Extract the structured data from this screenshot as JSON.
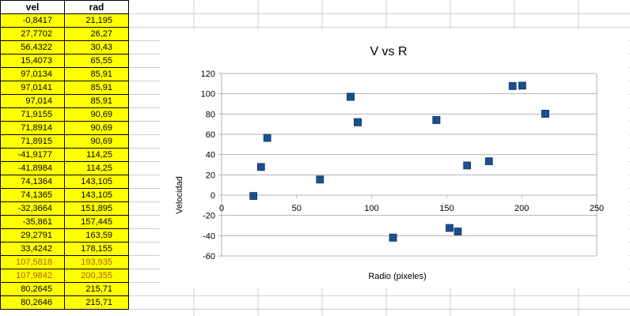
{
  "table": {
    "headers": {
      "vel": "vel",
      "rad": "rad"
    },
    "rows": [
      {
        "vel": "-0,8417",
        "rad": "21,195"
      },
      {
        "vel": "27,7702",
        "rad": "26,27"
      },
      {
        "vel": "56,4322",
        "rad": "30,43"
      },
      {
        "vel": "15,4073",
        "rad": "65,55"
      },
      {
        "vel": "97,0134",
        "rad": "85,91"
      },
      {
        "vel": "97,0141",
        "rad": "85,91"
      },
      {
        "vel": "97,014",
        "rad": "85,91"
      },
      {
        "vel": "71,9155",
        "rad": "90,69"
      },
      {
        "vel": "71,8914",
        "rad": "90,69"
      },
      {
        "vel": "71,8915",
        "rad": "90,69"
      },
      {
        "vel": "-41,9177",
        "rad": "114,25"
      },
      {
        "vel": "-41,8984",
        "rad": "114,25"
      },
      {
        "vel": "74,1364",
        "rad": "143,105"
      },
      {
        "vel": "74,1365",
        "rad": "143,105"
      },
      {
        "vel": "-32,3664",
        "rad": "151,895"
      },
      {
        "vel": "-35,861",
        "rad": "157,445"
      },
      {
        "vel": "29,2791",
        "rad": "163,59"
      },
      {
        "vel": "33,4242",
        "rad": "178,155"
      },
      {
        "vel": "107,5818",
        "rad": "193,935"
      },
      {
        "vel": "107,9842",
        "rad": "200,355"
      },
      {
        "vel": "80,2645",
        "rad": "215,71"
      },
      {
        "vel": "80,2646",
        "rad": "215,71"
      }
    ]
  },
  "colors": {
    "cell_fill": "#ffff00",
    "marker": "#1f4e8c",
    "gridline": "#b3b3b3",
    "orange_text": "#b35a00"
  },
  "chart_data": {
    "type": "scatter",
    "title": "V vs R",
    "xlabel": "Radio (pixeles)",
    "ylabel": "Velocidad",
    "xlim": [
      0,
      250
    ],
    "ylim": [
      -60,
      120
    ],
    "xticks": [
      0,
      50,
      100,
      150,
      200,
      250
    ],
    "yticks": [
      -60,
      -40,
      -20,
      0,
      20,
      40,
      60,
      80,
      100,
      120
    ],
    "grid": true,
    "legend": "none",
    "marker_shape": "square",
    "points": [
      {
        "x": 21.195,
        "y": -0.8417
      },
      {
        "x": 26.27,
        "y": 27.7702
      },
      {
        "x": 30.43,
        "y": 56.4322
      },
      {
        "x": 65.55,
        "y": 15.4073
      },
      {
        "x": 85.91,
        "y": 97.0134
      },
      {
        "x": 85.91,
        "y": 97.0141
      },
      {
        "x": 85.91,
        "y": 97.014
      },
      {
        "x": 90.69,
        "y": 71.9155
      },
      {
        "x": 90.69,
        "y": 71.8914
      },
      {
        "x": 90.69,
        "y": 71.8915
      },
      {
        "x": 114.25,
        "y": -41.9177
      },
      {
        "x": 114.25,
        "y": -41.8984
      },
      {
        "x": 143.105,
        "y": 74.1364
      },
      {
        "x": 143.105,
        "y": 74.1365
      },
      {
        "x": 151.895,
        "y": -32.3664
      },
      {
        "x": 157.445,
        "y": -35.861
      },
      {
        "x": 163.59,
        "y": 29.2791
      },
      {
        "x": 178.155,
        "y": 33.4242
      },
      {
        "x": 193.935,
        "y": 107.5818
      },
      {
        "x": 200.355,
        "y": 107.9842
      },
      {
        "x": 215.71,
        "y": 80.2645
      },
      {
        "x": 215.71,
        "y": 80.2646
      }
    ]
  }
}
